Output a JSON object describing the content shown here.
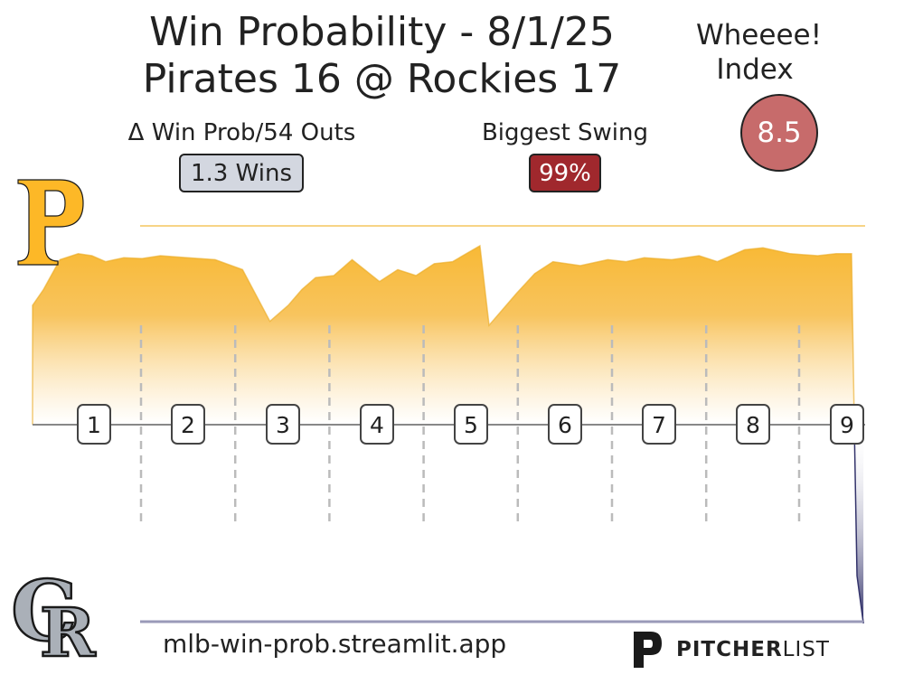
{
  "title_line1": "Win Probability - 8/1/25",
  "title_line2": "Pirates 16 @ Rockies 17",
  "wheeee": {
    "label_line1": "Wheeee!",
    "label_line2": "Index",
    "value": "8.5",
    "color": "#c76b6b"
  },
  "delta_win_prob": {
    "label": "Δ Win Prob/54 Outs",
    "value": "1.3 Wins"
  },
  "biggest_swing": {
    "label": "Biggest Swing",
    "value": "99%",
    "color": "#a0282d"
  },
  "footer": {
    "url": "mlb-win-prob.streamlit.app",
    "brand_bold": "PITCHER",
    "brand_regular": "LIST"
  },
  "teams": {
    "top": {
      "name": "Pirates",
      "logo": "pirates-p-logo",
      "color": "#fdb827"
    },
    "bottom": {
      "name": "Rockies",
      "logo": "rockies-cr-logo",
      "color": "#33336b"
    }
  },
  "chart_data": {
    "type": "area",
    "ylabel": "",
    "xlabel": "",
    "ylim": [
      0,
      100
    ],
    "innings": [
      "1",
      "2",
      "3",
      "4",
      "5",
      "6",
      "7",
      "8",
      "9"
    ],
    "x": [
      0,
      0.12,
      0.3,
      0.5,
      0.65,
      0.8,
      1.0,
      1.2,
      1.4,
      1.7,
      2.0,
      2.3,
      2.6,
      2.8,
      2.95,
      3.1,
      3.3,
      3.5,
      3.8,
      4.0,
      4.2,
      4.4,
      4.6,
      4.9,
      5.0,
      5.3,
      5.5,
      5.7,
      6.0,
      6.3,
      6.5,
      6.7,
      7.0,
      7.3,
      7.5,
      7.8,
      8.0,
      8.3,
      8.6,
      8.8,
      8.97,
      9.0,
      9.03,
      9.1
    ],
    "y": [
      80,
      84,
      91.5,
      93,
      92.5,
      91,
      92,
      91.8,
      92.5,
      92,
      91.5,
      89,
      76,
      80,
      84,
      87,
      87.5,
      91.5,
      86,
      89,
      87.5,
      90.5,
      91,
      95,
      75,
      83,
      88,
      91,
      90,
      91.5,
      91,
      92,
      91.5,
      92.5,
      91,
      94,
      94.5,
      93,
      92.5,
      93,
      93,
      50,
      12,
      0
    ],
    "reference_line": 100
  }
}
